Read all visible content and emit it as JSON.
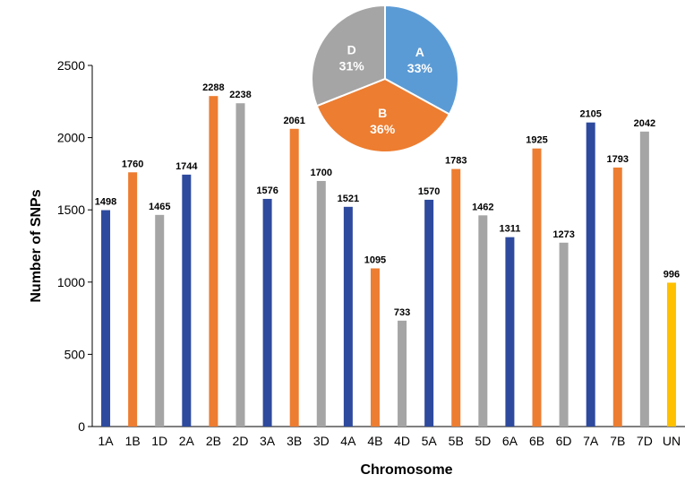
{
  "chart_data": [
    {
      "type": "bar",
      "xlabel": "Chromosome",
      "ylabel": "Number of SNPs",
      "ylim": [
        0,
        2500
      ],
      "yticks": [
        0,
        500,
        1000,
        1500,
        2000,
        2500
      ],
      "grid": false,
      "legend": "none",
      "categories": [
        "1A",
        "1B",
        "1D",
        "2A",
        "2B",
        "2D",
        "3A",
        "3B",
        "3D",
        "4A",
        "4B",
        "4D",
        "5A",
        "5B",
        "5D",
        "6A",
        "6B",
        "6D",
        "7A",
        "7B",
        "7D",
        "UN"
      ],
      "values": [
        1498,
        1760,
        1465,
        1744,
        2288,
        2238,
        1576,
        2061,
        1700,
        1521,
        1095,
        733,
        1570,
        1783,
        1462,
        1311,
        1925,
        1273,
        2105,
        1793,
        2042,
        996
      ],
      "genome_colors": {
        "A": "#2E4A9E",
        "B": "#ED7D31",
        "D": "#A5A5A5",
        "UN": "#FFC000"
      }
    },
    {
      "type": "pie",
      "slices": [
        {
          "label": "A",
          "value": 33,
          "value_label": "33%",
          "color": "#5B9BD5"
        },
        {
          "label": "B",
          "value": 36,
          "value_label": "36%",
          "color": "#ED7D31"
        },
        {
          "label": "D",
          "value": 31,
          "value_label": "31%",
          "color": "#A5A5A5"
        }
      ],
      "start_angle_deg": 0,
      "direction": "clockwise"
    }
  ]
}
